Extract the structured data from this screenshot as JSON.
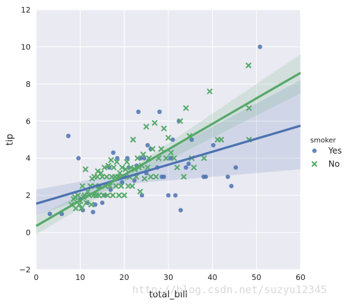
{
  "chart_data": {
    "type": "scatter",
    "xlabel": "total_bill",
    "ylabel": "tip",
    "xlim": [
      0,
      60
    ],
    "ylim": [
      -2,
      12
    ],
    "xticks": [
      "0",
      "10",
      "20",
      "30",
      "40",
      "50",
      "60"
    ],
    "yticks": [
      "−2",
      "0",
      "2",
      "4",
      "6",
      "8",
      "10",
      "12"
    ],
    "grid": true,
    "legend": {
      "title": "smoker",
      "placement": "right",
      "entries": [
        "Yes",
        "No"
      ]
    },
    "series": [
      {
        "name": "Yes",
        "color": "#4c72b0",
        "marker": "circle",
        "regression": {
          "x": [
            0,
            60
          ],
          "y": [
            1.55,
            5.75
          ]
        },
        "ci_band": {
          "x": [
            0,
            20,
            60
          ],
          "lower": [
            0.9,
            2.6,
            3.4
          ],
          "upper": [
            2.3,
            3.2,
            8.2
          ]
        },
        "points": [
          [
            50.8,
            10.0
          ],
          [
            7.3,
            5.2
          ],
          [
            9.6,
            4.0
          ],
          [
            3.1,
            1.0
          ],
          [
            5.8,
            1.0
          ],
          [
            10.6,
            1.2
          ],
          [
            10.1,
            1.8
          ],
          [
            11.6,
            1.6
          ],
          [
            12.9,
            1.1
          ],
          [
            13.4,
            1.5
          ],
          [
            14.3,
            2.5
          ],
          [
            15.0,
            1.6
          ],
          [
            15.5,
            2.0
          ],
          [
            16.6,
            3.5
          ],
          [
            16.9,
            2.3
          ],
          [
            17.5,
            4.3
          ],
          [
            18.4,
            4.0
          ],
          [
            19.5,
            2.7
          ],
          [
            20.1,
            3.0
          ],
          [
            20.7,
            4.0
          ],
          [
            21.0,
            3.5
          ],
          [
            22.3,
            2.8
          ],
          [
            22.8,
            3.6
          ],
          [
            23.2,
            6.5
          ],
          [
            23.7,
            4.0
          ],
          [
            24.0,
            2.0
          ],
          [
            24.5,
            4.0
          ],
          [
            25.0,
            3.2
          ],
          [
            25.3,
            4.7
          ],
          [
            26.0,
            4.5
          ],
          [
            27.5,
            3.5
          ],
          [
            28.0,
            6.5
          ],
          [
            28.5,
            3.0
          ],
          [
            29.0,
            3.0
          ],
          [
            30.0,
            2.0
          ],
          [
            30.5,
            4.0
          ],
          [
            31.0,
            5.0
          ],
          [
            31.6,
            2.0
          ],
          [
            32.4,
            6.0
          ],
          [
            32.8,
            1.2
          ],
          [
            34.0,
            3.5
          ],
          [
            34.6,
            3.7
          ],
          [
            35.3,
            5.0
          ],
          [
            38.0,
            3.0
          ],
          [
            38.5,
            3.0
          ],
          [
            40.2,
            4.7
          ],
          [
            43.5,
            3.0
          ],
          [
            44.3,
            2.5
          ],
          [
            45.3,
            3.5
          ]
        ]
      },
      {
        "name": "No",
        "color": "#55a868",
        "marker": "x",
        "regression": {
          "x": [
            0,
            60
          ],
          "y": [
            0.35,
            8.6
          ]
        },
        "ci_band": {
          "x": [
            0,
            20,
            60
          ],
          "lower": [
            -0.1,
            2.7,
            7.5
          ],
          "upper": [
            0.85,
            3.2,
            9.6
          ]
        },
        "points": [
          [
            8.0,
            1.5
          ],
          [
            8.5,
            1.8
          ],
          [
            8.8,
            1.9
          ],
          [
            9.0,
            1.3
          ],
          [
            9.5,
            2.0
          ],
          [
            9.8,
            1.5
          ],
          [
            10.0,
            1.7
          ],
          [
            10.3,
            1.3
          ],
          [
            10.5,
            2.5
          ],
          [
            10.8,
            1.9
          ],
          [
            11.0,
            2.0
          ],
          [
            11.2,
            3.4
          ],
          [
            11.4,
            1.6
          ],
          [
            11.7,
            2.2
          ],
          [
            12.0,
            2.0
          ],
          [
            12.3,
            2.5
          ],
          [
            12.5,
            1.5
          ],
          [
            12.7,
            2.9
          ],
          [
            13.0,
            2.0
          ],
          [
            13.2,
            3.0
          ],
          [
            13.4,
            2.5
          ],
          [
            13.6,
            2.0
          ],
          [
            13.9,
            3.0
          ],
          [
            14.0,
            3.3
          ],
          [
            14.2,
            2.0
          ],
          [
            14.5,
            2.5
          ],
          [
            14.7,
            3.2
          ],
          [
            15.0,
            3.0
          ],
          [
            15.3,
            2.0
          ],
          [
            15.5,
            3.5
          ],
          [
            15.7,
            2.5
          ],
          [
            16.0,
            3.0
          ],
          [
            16.2,
            2.0
          ],
          [
            16.4,
            3.6
          ],
          [
            16.7,
            2.5
          ],
          [
            17.0,
            3.9
          ],
          [
            17.2,
            3.0
          ],
          [
            17.4,
            2.0
          ],
          [
            17.6,
            3.5
          ],
          [
            17.9,
            3.0
          ],
          [
            18.1,
            2.5
          ],
          [
            18.3,
            3.8
          ],
          [
            18.6,
            3.0
          ],
          [
            18.8,
            2.0
          ],
          [
            19.0,
            3.2
          ],
          [
            19.3,
            2.5
          ],
          [
            19.5,
            3.5
          ],
          [
            19.8,
            3.0
          ],
          [
            20.0,
            2.0
          ],
          [
            20.3,
            3.4
          ],
          [
            20.6,
            3.8
          ],
          [
            20.9,
            2.5
          ],
          [
            21.2,
            3.0
          ],
          [
            21.5,
            3.5
          ],
          [
            21.8,
            2.5
          ],
          [
            22.0,
            5.0
          ],
          [
            22.4,
            3.4
          ],
          [
            22.7,
            3.0
          ],
          [
            23.0,
            4.0
          ],
          [
            23.3,
            3.5
          ],
          [
            23.6,
            2.2
          ],
          [
            24.0,
            3.6
          ],
          [
            24.3,
            4.2
          ],
          [
            24.6,
            2.9
          ],
          [
            25.0,
            5.7
          ],
          [
            25.3,
            3.5
          ],
          [
            25.6,
            4.0
          ],
          [
            26.0,
            3.0
          ],
          [
            26.4,
            4.5
          ],
          [
            26.9,
            5.9
          ],
          [
            27.2,
            3.0
          ],
          [
            27.8,
            4.0
          ],
          [
            28.4,
            4.5
          ],
          [
            29.0,
            5.6
          ],
          [
            29.5,
            4.0
          ],
          [
            30.0,
            5.1
          ],
          [
            30.6,
            4.3
          ],
          [
            31.3,
            4.0
          ],
          [
            32.0,
            3.5
          ],
          [
            32.7,
            6.0
          ],
          [
            33.5,
            3.0
          ],
          [
            34.0,
            6.7
          ],
          [
            34.8,
            5.2
          ],
          [
            35.3,
            4.0
          ],
          [
            35.8,
            3.5
          ],
          [
            38.1,
            4.0
          ],
          [
            39.4,
            7.6
          ],
          [
            41.2,
            5.0
          ],
          [
            42.0,
            5.0
          ],
          [
            48.2,
            9.0
          ],
          [
            48.3,
            6.7
          ],
          [
            48.3,
            5.0
          ]
        ]
      }
    ]
  },
  "watermark": "http://blog.csdn.net/suzyu12345"
}
